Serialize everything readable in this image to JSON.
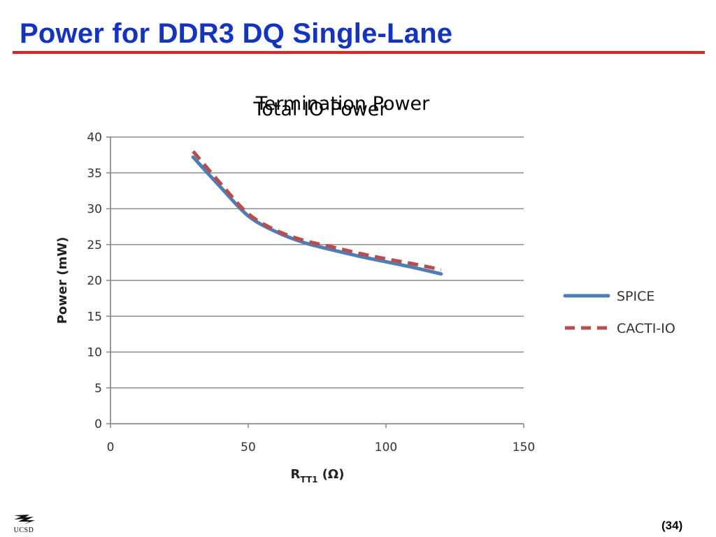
{
  "slide": {
    "title": "Power for DDR3 DQ Single-Lane",
    "page_number": "(34)",
    "logo_text": "UCSD"
  },
  "colors": {
    "title": "#1233c8",
    "rule": "#e8201c",
    "spice": "#4a7ebb",
    "cacti": "#be4b48",
    "grid": "#8c8c8c"
  },
  "chart_data": {
    "type": "line",
    "titles": [
      "Termination Power",
      "Total IO Power"
    ],
    "xlabel_main": "R",
    "xlabel_sub": "TT1",
    "xlabel_unit": " (Ω)",
    "ylabel": "Power (mW)",
    "xlim": [
      0,
      150
    ],
    "ylim": [
      0,
      40
    ],
    "x_ticks": [
      "0",
      "50",
      "100",
      "150"
    ],
    "y_ticks": [
      "0",
      "5",
      "10",
      "15",
      "20",
      "25",
      "30",
      "35",
      "40"
    ],
    "grid": true,
    "legend_position": "right",
    "series": [
      {
        "name": "SPICE",
        "style": "solid",
        "color": "#4a7ebb",
        "x": [
          30,
          40,
          50,
          60,
          70,
          80,
          90,
          100,
          110,
          120
        ],
        "y": [
          37.2,
          33.0,
          29.0,
          26.8,
          25.3,
          24.3,
          23.4,
          22.6,
          21.8,
          20.9
        ]
      },
      {
        "name": "CACTI-IO",
        "style": "dashed",
        "color": "#be4b48",
        "x": [
          30,
          40,
          50,
          60,
          70,
          80,
          90,
          100,
          110,
          120
        ],
        "y": [
          38.0,
          33.5,
          29.3,
          27.0,
          25.6,
          24.7,
          23.8,
          23.0,
          22.3,
          21.5
        ]
      }
    ]
  }
}
